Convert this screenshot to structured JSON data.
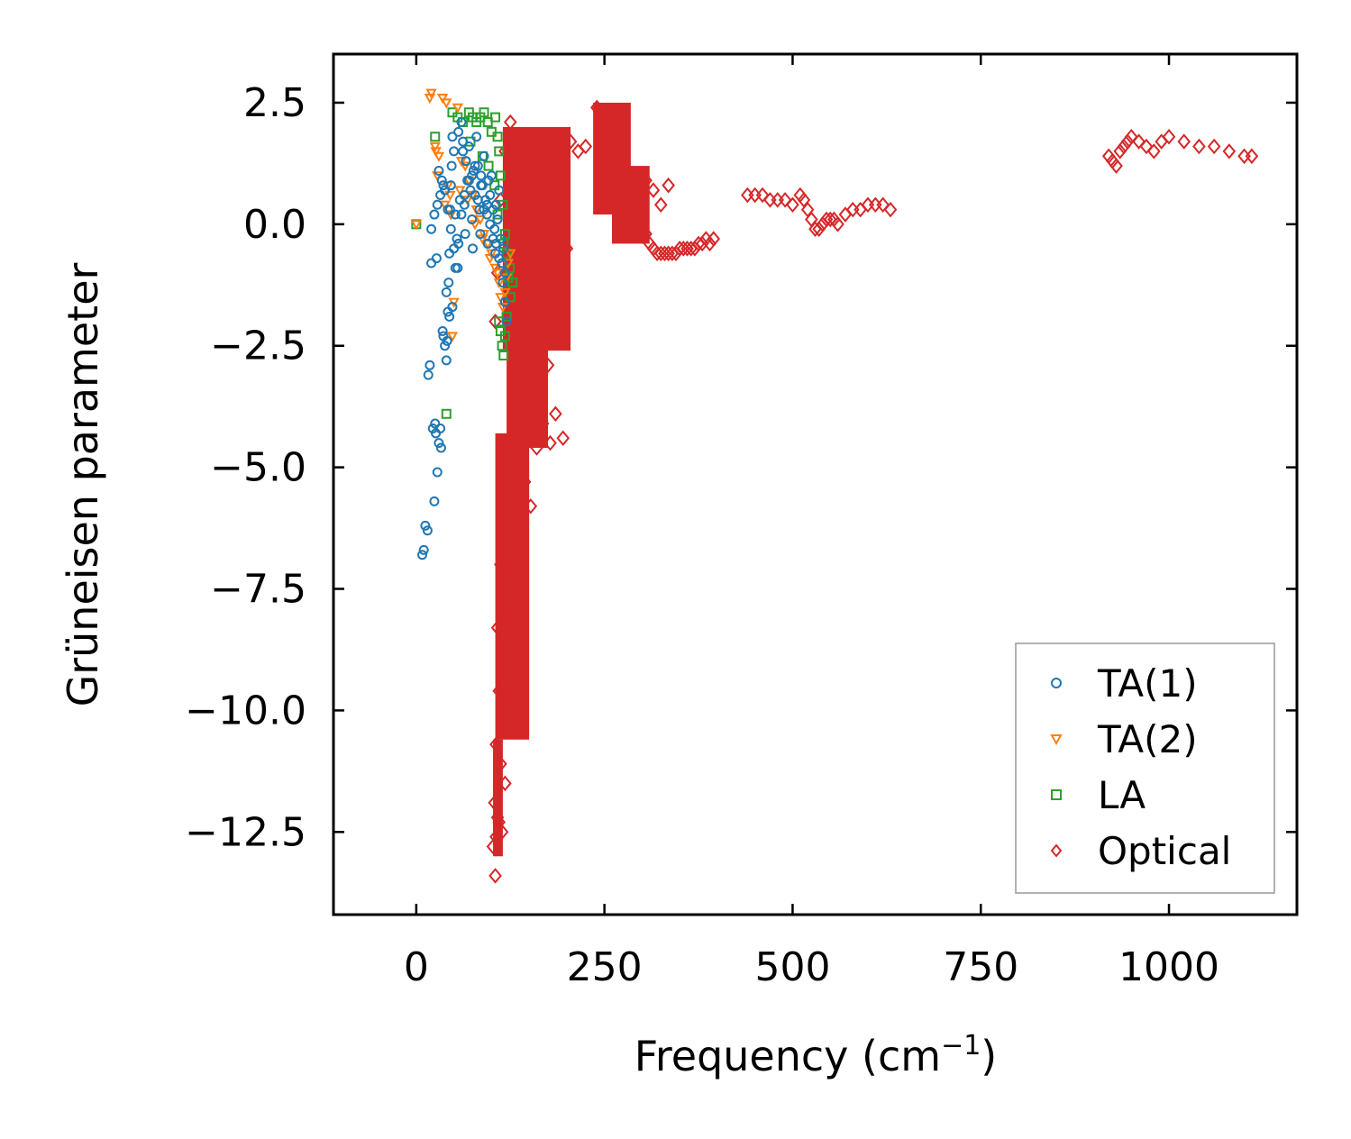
{
  "chart_data": {
    "type": "scatter",
    "title": "",
    "xlabel": "Frequency (cm",
    "xlabel_sup": "−1",
    "xlabel_end": ")",
    "ylabel": "Grüneisen parameter",
    "xlim": [
      -110,
      1170
    ],
    "ylim": [
      -14.2,
      3.5
    ],
    "xticks": [
      0,
      250,
      500,
      750,
      1000
    ],
    "yticks": [
      2.5,
      0.0,
      -2.5,
      -5.0,
      -7.5,
      -10.0,
      -12.5
    ],
    "xtick_labels": [
      "0",
      "250",
      "500",
      "750",
      "1000"
    ],
    "ytick_labels": [
      "2.5",
      "0.0",
      "−2.5",
      "−5.0",
      "−7.5",
      "−10.0",
      "−12.5"
    ],
    "legend_position": "lower-right",
    "series": [
      {
        "name": "TA(1)",
        "marker": "circle",
        "color": "#1f77b4",
        "x": [
          8,
          10,
          12,
          15,
          16,
          18,
          20,
          22,
          24,
          25,
          26,
          27,
          28,
          30,
          32,
          33,
          35,
          36,
          38,
          40,
          41,
          42,
          43,
          44,
          45,
          46,
          47,
          48,
          50,
          52,
          54,
          55,
          56,
          58,
          60,
          62,
          64,
          65,
          66,
          68,
          70,
          72,
          74,
          75,
          76,
          78,
          80,
          82,
          84,
          85,
          86,
          88,
          90,
          92,
          94,
          95,
          96,
          98,
          100,
          102,
          104,
          105,
          106,
          108,
          110,
          112,
          114,
          115,
          116,
          118,
          120,
          30,
          34,
          38,
          42,
          46,
          50,
          40,
          44,
          48,
          52,
          56,
          60,
          64,
          70,
          78,
          86,
          94,
          102,
          110,
          118,
          20,
          24,
          28,
          32,
          36,
          62,
          66,
          74,
          82,
          90,
          98,
          106,
          114
        ],
        "y": [
          -6.8,
          -6.7,
          -6.2,
          -6.3,
          -3.1,
          -2.9,
          -0.8,
          -4.2,
          -5.7,
          -4.1,
          -4.3,
          -0.7,
          -5.1,
          -4.5,
          -4.2,
          -4.6,
          -2.2,
          -2.3,
          -2.5,
          -2.8,
          -2.4,
          -1.8,
          -1.2,
          -0.6,
          0.3,
          0.8,
          1.2,
          1.8,
          1.5,
          0.2,
          -0.3,
          -0.9,
          1.9,
          0.5,
          2.1,
          1.7,
          0.4,
          -0.2,
          1.3,
          0.9,
          1.6,
          0.7,
          0.1,
          -0.5,
          1.1,
          0.6,
          1.8,
          1.2,
          0.3,
          -0.2,
          1.0,
          0.8,
          1.4,
          0.5,
          0.2,
          -0.4,
          0.9,
          0.6,
          1.0,
          0.3,
          -0.1,
          -0.6,
          0.4,
          0.1,
          0.7,
          -0.3,
          -0.8,
          -1.2,
          -0.5,
          -1.6,
          -2.0,
          1.1,
          0.9,
          0.7,
          0.3,
          -0.1,
          -0.5,
          -1.4,
          -1.9,
          -1.7,
          -0.9,
          -0.4,
          0.2,
          0.6,
          0.9,
          1.2,
          0.8,
          0.4,
          -0.3,
          -0.7,
          -1.0,
          -0.1,
          0.2,
          0.4,
          0.6,
          0.8,
          1.5,
          1.3,
          1.0,
          0.5,
          0.3,
          0.0,
          -0.4,
          -0.8
        ]
      },
      {
        "name": "TA(2)",
        "marker": "triangle-down",
        "color": "#ff7f0e",
        "x": [
          0,
          18,
          20,
          25,
          26,
          30,
          35,
          40,
          42,
          45,
          48,
          50,
          55,
          60,
          65,
          70,
          75,
          80,
          85,
          90,
          95,
          100,
          105,
          110,
          112,
          115,
          118,
          120,
          122,
          125,
          28,
          38,
          46,
          58,
          68,
          78,
          88,
          98,
          108
        ],
        "y": [
          0.0,
          2.6,
          2.7,
          1.6,
          1.5,
          1.4,
          2.6,
          2.5,
          0.8,
          0.6,
          -2.3,
          -1.6,
          2.4,
          1.3,
          1.2,
          0.9,
          0.6,
          0.3,
          0.1,
          -0.2,
          -0.4,
          -0.6,
          -0.9,
          -1.2,
          -1.5,
          -1.7,
          -1.4,
          -1.1,
          -0.8,
          -0.6,
          1.0,
          0.4,
          0.2,
          0.7,
          0.5,
          0.0,
          -0.3,
          -0.7,
          -1.0
        ]
      },
      {
        "name": "LA",
        "marker": "square",
        "color": "#2ca02c",
        "x": [
          0,
          25,
          40,
          48,
          55,
          62,
          70,
          75,
          80,
          85,
          90,
          95,
          100,
          105,
          108,
          110,
          112,
          115,
          118,
          120,
          122,
          125,
          128,
          110,
          112,
          114,
          116,
          118,
          120,
          72,
          88,
          96,
          104,
          108,
          116,
          124
        ],
        "y": [
          0.0,
          1.8,
          -3.9,
          2.3,
          2.2,
          2.1,
          2.3,
          2.2,
          2.1,
          2.2,
          2.3,
          2.1,
          1.9,
          2.2,
          1.8,
          1.5,
          1.0,
          0.4,
          -0.2,
          -0.6,
          -1.1,
          -1.5,
          -1.2,
          -2.0,
          -2.2,
          -2.5,
          -2.7,
          -2.3,
          -1.9,
          1.7,
          1.4,
          1.2,
          0.8,
          0.2,
          -0.4,
          -0.9
        ]
      },
      {
        "name": "Optical",
        "marker": "diamond",
        "color": "#d62728",
        "regions": [
          {
            "x_min": 115,
            "x_max": 205,
            "y_min": -2.6,
            "y_max": 2.0
          },
          {
            "x_min": 120,
            "x_max": 175,
            "y_min": -4.6,
            "y_max": -2.2
          },
          {
            "x_min": 105,
            "x_max": 150,
            "y_min": -10.6,
            "y_max": -4.3
          },
          {
            "x_min": 102,
            "x_max": 115,
            "y_min": -13.0,
            "y_max": -10.6
          },
          {
            "x_min": 235,
            "x_max": 285,
            "y_min": 0.2,
            "y_max": 2.5
          },
          {
            "x_min": 260,
            "x_max": 310,
            "y_min": -0.4,
            "y_max": 1.2
          }
        ],
        "x": [
          105,
          108,
          112,
          118,
          125,
          130,
          138,
          145,
          155,
          165,
          175,
          185,
          195,
          200,
          148,
          158,
          168,
          178,
          188,
          195,
          134,
          142,
          150,
          160,
          170,
          180,
          128,
          136,
          144,
          152,
          116,
          122,
          128,
          134,
          140,
          112,
          118,
          124,
          130,
          136,
          108,
          114,
          120,
          126,
          110,
          116,
          122,
          106,
          112,
          118,
          104,
          108,
          114,
          102,
          106,
          110,
          105,
          240,
          245,
          250,
          255,
          260,
          265,
          270,
          275,
          280,
          285,
          290,
          295,
          300,
          305,
          310,
          315,
          320,
          325,
          330,
          335,
          340,
          345,
          350,
          355,
          360,
          365,
          370,
          375,
          380,
          385,
          390,
          395,
          255,
          265,
          275,
          285,
          295,
          305,
          315,
          325,
          335,
          440,
          450,
          460,
          470,
          480,
          490,
          500,
          510,
          515,
          520,
          525,
          530,
          535,
          540,
          545,
          550,
          555,
          560,
          570,
          580,
          590,
          600,
          610,
          620,
          630,
          920,
          925,
          930,
          935,
          940,
          945,
          950,
          960,
          970,
          980,
          990,
          1000,
          1020,
          1040,
          1060,
          1080,
          1100,
          1110,
          225,
          215,
          205,
          195
        ],
        "y": [
          -2.0,
          -1.0,
          0.5,
          1.5,
          2.1,
          1.6,
          0.8,
          -0.2,
          -1.0,
          -2.0,
          -2.9,
          -3.9,
          -4.4,
          -0.5,
          -3.0,
          -3.6,
          -4.1,
          -4.5,
          -2.2,
          1.5,
          -2.8,
          -3.3,
          -4.0,
          -4.6,
          -2.0,
          1.7,
          -4.5,
          -4.9,
          -5.3,
          -5.8,
          -5.6,
          -6.0,
          -6.5,
          -7.0,
          -7.3,
          -7.0,
          -7.6,
          -8.0,
          -8.5,
          -9.0,
          -8.3,
          -8.8,
          -9.3,
          -9.7,
          -9.6,
          -10.1,
          -10.4,
          -10.7,
          -11.1,
          -11.5,
          -11.9,
          -12.2,
          -12.5,
          -12.8,
          -12.6,
          -12.3,
          -13.4,
          2.4,
          2.3,
          2.0,
          1.7,
          1.4,
          1.2,
          0.9,
          0.8,
          0.6,
          0.4,
          0.2,
          0.0,
          -0.1,
          -0.2,
          -0.4,
          -0.5,
          -0.6,
          -0.6,
          -0.6,
          -0.6,
          -0.6,
          -0.6,
          -0.5,
          -0.5,
          -0.5,
          -0.5,
          -0.5,
          -0.4,
          -0.4,
          -0.3,
          -0.4,
          -0.3,
          0.6,
          0.3,
          0.0,
          -0.2,
          0.5,
          0.9,
          0.7,
          0.4,
          0.8,
          0.6,
          0.6,
          0.6,
          0.5,
          0.5,
          0.5,
          0.4,
          0.6,
          0.5,
          0.3,
          0.1,
          -0.1,
          -0.1,
          0.0,
          0.1,
          0.1,
          0.1,
          0.0,
          0.2,
          0.3,
          0.3,
          0.4,
          0.4,
          0.4,
          0.3,
          1.4,
          1.3,
          1.2,
          1.5,
          1.6,
          1.7,
          1.8,
          1.7,
          1.6,
          1.5,
          1.7,
          1.8,
          1.7,
          1.6,
          1.6,
          1.5,
          1.4,
          1.4,
          1.6,
          1.5,
          1.7,
          1.4
        ]
      }
    ]
  }
}
